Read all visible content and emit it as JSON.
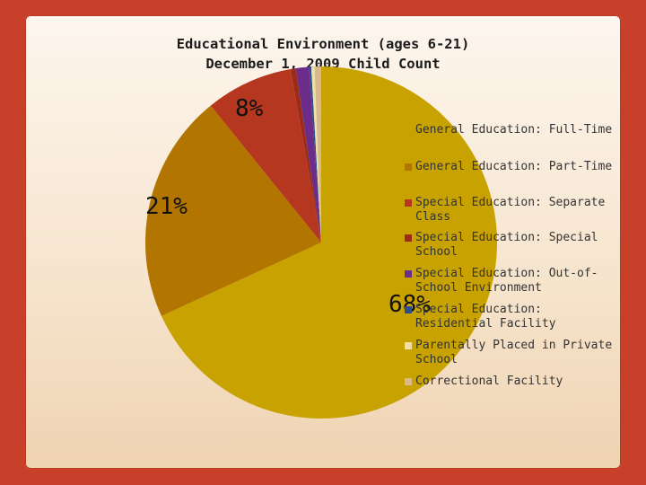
{
  "chart_data": {
    "type": "pie",
    "title": [
      "Educational Environment (ages 6-21)",
      "December 1, 2009 Child Count"
    ],
    "slices": [
      {
        "label": "General Education: Full-Time",
        "value": 68,
        "color": "#c8a200",
        "pct_label": "68%"
      },
      {
        "label": "General Education: Part-Time",
        "value": 21,
        "color": "#b27600",
        "pct_label": "21%"
      },
      {
        "label": "Special Education: Separate Class",
        "value": 8,
        "color": "#b5371f",
        "pct_label": "8%"
      },
      {
        "label": "Special Education: Special School",
        "value": 0.5,
        "color": "#9c2c1a",
        "pct_label": ""
      },
      {
        "label": "Special Education: Out-of-School Environment",
        "value": 1.2,
        "color": "#6b2c8a",
        "pct_label": ""
      },
      {
        "label": "Special Education: Residential Facility",
        "value": 0.2,
        "color": "#2e4f88",
        "pct_label": ""
      },
      {
        "label": "Parentally Placed in Private School",
        "value": 0.3,
        "color": "#efe0a8",
        "pct_label": ""
      },
      {
        "label": "Correctional Facility",
        "value": 0.6,
        "color": "#d9b88a",
        "pct_label": ""
      }
    ],
    "legend_position": "right"
  }
}
